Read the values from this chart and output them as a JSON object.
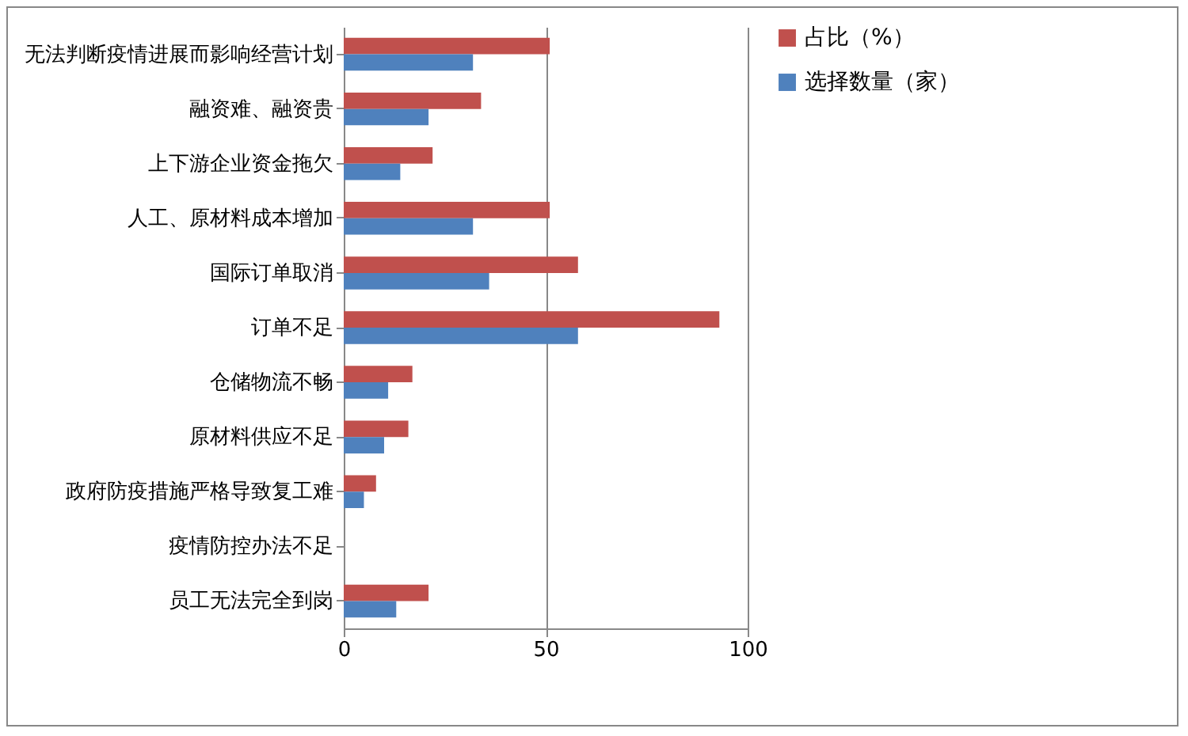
{
  "chart_data": {
    "type": "bar",
    "orientation": "horizontal",
    "categories": [
      "无法判断疫情进展而影响经营计划",
      "融资难、融资贵",
      "上下游企业资金拖欠",
      "人工、原材料成本增加",
      "国际订单取消",
      "订单不足",
      "仓储物流不畅",
      "原材料供应不足",
      "政府防疫措施严格导致复工难",
      "疫情防控办法不足",
      "员工无法完全到岗"
    ],
    "series": [
      {
        "name": "占比（%）",
        "color": "#c0504d",
        "values": [
          51,
          34,
          22,
          51,
          58,
          93,
          17,
          16,
          8,
          0,
          21
        ]
      },
      {
        "name": "选择数量（家）",
        "color": "#4f81bd",
        "values": [
          32,
          21,
          14,
          32,
          36,
          58,
          11,
          10,
          5,
          0,
          13
        ]
      }
    ],
    "xlim": [
      0,
      100
    ],
    "xticks": [
      0,
      50,
      100
    ],
    "grid": "x",
    "legend": "right"
  }
}
